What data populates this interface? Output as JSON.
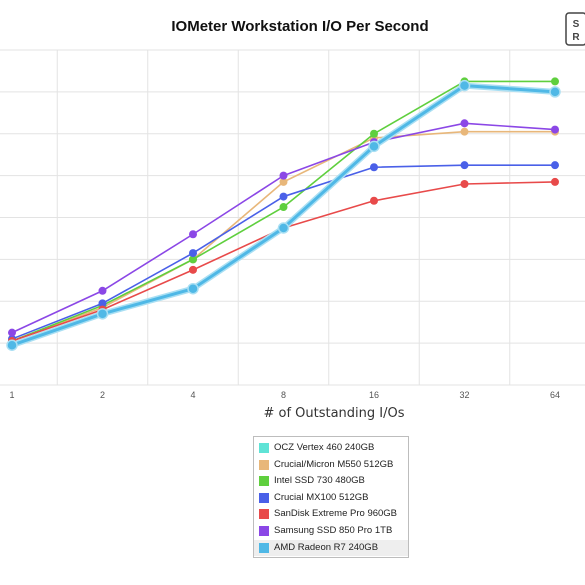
{
  "chart_data": {
    "type": "line",
    "title": "IOMeter Workstation I/O Per Second",
    "xlabel": "# of Outstanding I/Os",
    "ylabel": "",
    "categories": [
      "1",
      "2",
      "4",
      "8",
      "16",
      "32",
      "64"
    ],
    "ylim": [
      0,
      8
    ],
    "grid": true,
    "legend_placement": "bottom-center",
    "series": [
      {
        "name": "OCZ Vertex 460 240GB",
        "color": "#5fe3d6",
        "values": [
          0.95,
          1.7,
          2.3,
          3.75,
          5.7,
          7.15,
          7.0
        ]
      },
      {
        "name": "Crucial/Micron M550 512GB",
        "color": "#e8b77a",
        "values": [
          1.05,
          1.85,
          3.0,
          4.85,
          5.9,
          6.05,
          6.05
        ]
      },
      {
        "name": "Intel SSD 730 480GB",
        "color": "#5fcf3e",
        "values": [
          1.05,
          1.9,
          3.0,
          4.25,
          6.0,
          7.25,
          7.25
        ]
      },
      {
        "name": "Crucial MX100 512GB",
        "color": "#4a60e8",
        "values": [
          1.1,
          1.95,
          3.15,
          4.5,
          5.2,
          5.25,
          5.25
        ]
      },
      {
        "name": "SanDisk Extreme Pro 960GB",
        "color": "#e84a4a",
        "values": [
          1.05,
          1.8,
          2.75,
          3.75,
          4.4,
          4.8,
          4.85
        ]
      },
      {
        "name": "Samsung SSD 850 Pro 1TB",
        "color": "#8b47e6",
        "values": [
          1.25,
          2.25,
          3.6,
          5.0,
          5.8,
          6.25,
          6.1
        ]
      },
      {
        "name": "AMD Radeon R7 240GB",
        "color": "#4fb8e6",
        "values": [
          0.95,
          1.7,
          2.3,
          3.75,
          5.7,
          7.15,
          7.0
        ]
      }
    ]
  },
  "logo": {
    "text": "SR"
  }
}
